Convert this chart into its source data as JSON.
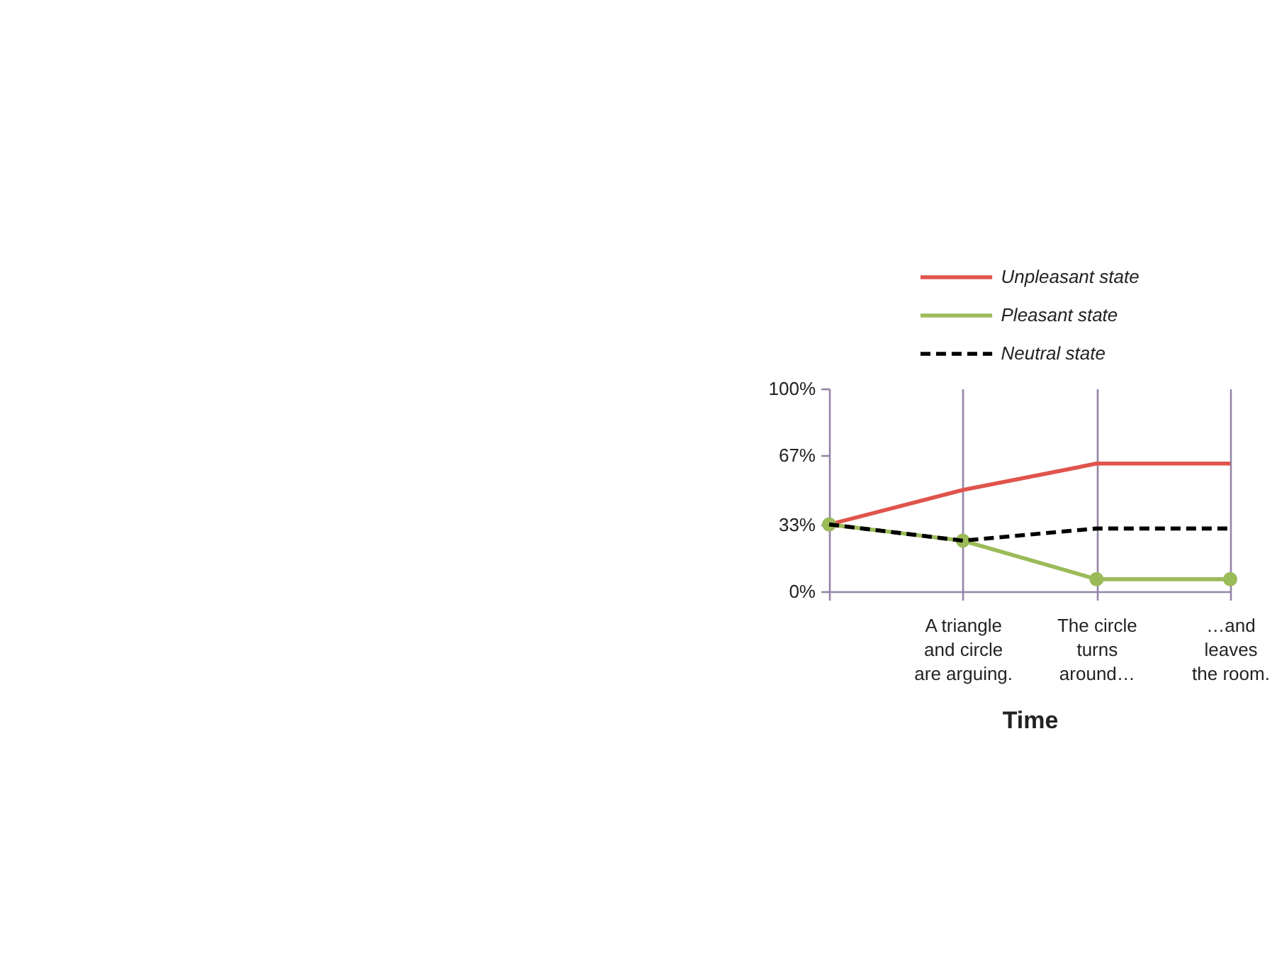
{
  "chart_data": {
    "type": "line",
    "categories": [
      null,
      "A triangle and circle are arguing.",
      "The circle turns around…",
      "…and leaves the room."
    ],
    "xlabel": "Time",
    "ylim": [
      0,
      100
    ],
    "yticks": [
      {
        "value": 0,
        "label": "0%"
      },
      {
        "value": 33,
        "label": "33%"
      },
      {
        "value": 67,
        "label": "67%"
      },
      {
        "value": 100,
        "label": "100%"
      }
    ],
    "grid": "x",
    "legend": "top",
    "series": [
      {
        "name": "Unpleasant state",
        "color": "#e0544c",
        "values": [
          33,
          50,
          63,
          63
        ]
      },
      {
        "name": "Pleasant state",
        "color": "#9bbb59",
        "values": [
          33,
          25,
          6,
          6
        ],
        "marker": "circle"
      },
      {
        "name": "Neutral state",
        "color": "#000000",
        "values": [
          33,
          25,
          31,
          31
        ],
        "line_style": "dashed"
      }
    ]
  }
}
